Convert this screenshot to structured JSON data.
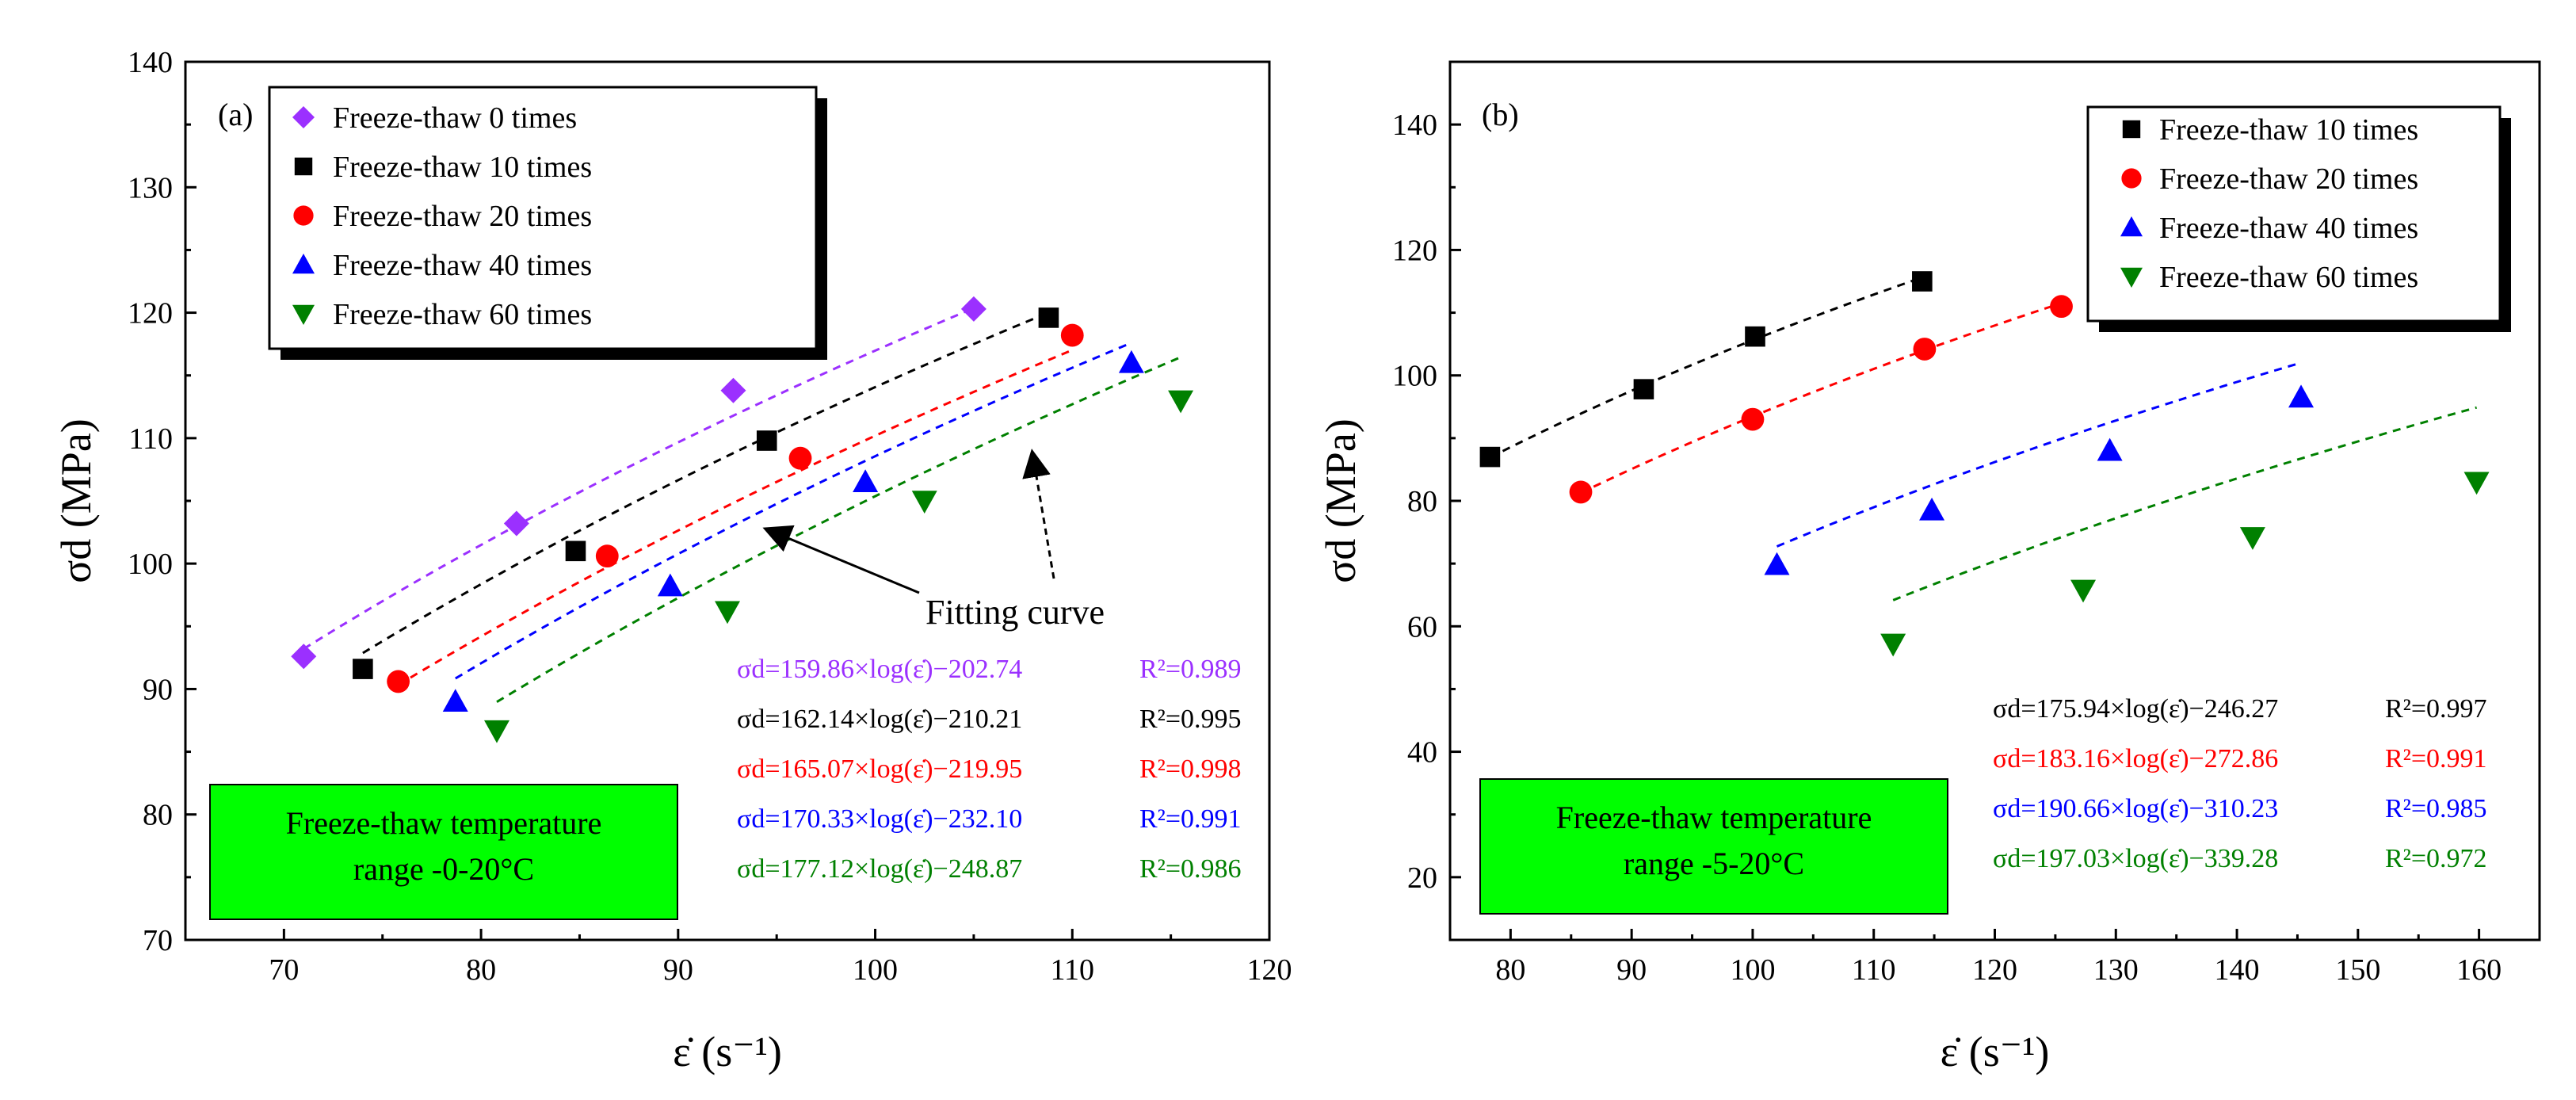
{
  "chart_data": [
    {
      "type": "scatter",
      "panel_label": "(a)",
      "xlabel": "ε̇ (s⁻¹)",
      "ylabel": "σd (MPa)",
      "xlim": [
        65,
        120
      ],
      "ylim": [
        70,
        140
      ],
      "xticks": [
        70,
        80,
        90,
        100,
        110,
        120
      ],
      "yticks": [
        70,
        80,
        90,
        100,
        110,
        120,
        130,
        140
      ],
      "legend_position": "top-left",
      "series": [
        {
          "name": "Freeze-thaw  0 times",
          "marker": "diamond",
          "color": "#9B30FF",
          "x": [
            71.0,
            81.8,
            92.8,
            105.0
          ],
          "y": [
            92.6,
            103.2,
            113.8,
            120.3
          ],
          "fit": {
            "a": 159.86,
            "b": -202.74
          },
          "equation": "σd=159.86×log(ε̇)−202.74",
          "r2": "R²=0.989"
        },
        {
          "name": "Freeze-thaw  10 times",
          "marker": "square",
          "color": "#000000",
          "x": [
            74.0,
            84.8,
            94.5,
            108.8
          ],
          "y": [
            91.6,
            101.0,
            109.8,
            119.6
          ],
          "fit": {
            "a": 162.14,
            "b": -210.21
          },
          "equation": "σd=162.14×log(ε̇)−210.21",
          "r2": "R²=0.995"
        },
        {
          "name": "Freeze-thaw  20 times",
          "marker": "circle",
          "color": "#FF0000",
          "x": [
            75.8,
            86.4,
            96.2,
            110.0
          ],
          "y": [
            90.6,
            100.6,
            108.4,
            118.2
          ],
          "fit": {
            "a": 165.07,
            "b": -219.95
          },
          "equation": "σd=165.07×log(ε̇)−219.95",
          "r2": "R²=0.998"
        },
        {
          "name": "Freeze-thaw  40 times",
          "marker": "triangle-up",
          "color": "#0000FF",
          "x": [
            78.7,
            89.6,
            99.5,
            113.0
          ],
          "y": [
            89.0,
            98.2,
            106.5,
            116.0
          ],
          "fit": {
            "a": 170.33,
            "b": -232.1
          },
          "equation": "σd=170.33×log(ε̇)−232.10",
          "r2": "R²=0.991"
        },
        {
          "name": "Freeze-thaw  60 times",
          "marker": "triangle-down",
          "color": "#008000",
          "x": [
            80.8,
            92.5,
            102.5,
            115.5
          ],
          "y": [
            86.7,
            96.2,
            105.0,
            113.0
          ],
          "fit": {
            "a": 177.12,
            "b": -248.87
          },
          "equation": "σd=177.12×log(ε̇)−248.87",
          "r2": "R²=0.986"
        }
      ],
      "annotation": "Fitting curve",
      "note": [
        "Freeze-thaw temperature",
        "range -0-20°C"
      ]
    },
    {
      "type": "scatter",
      "panel_label": "(b)",
      "xlabel": "ε̇ (s⁻¹)",
      "ylabel": "σd (MPa)",
      "xlim": [
        75,
        165
      ],
      "ylim": [
        10,
        150
      ],
      "xticks": [
        80,
        90,
        100,
        110,
        120,
        130,
        140,
        150,
        160
      ],
      "yticks": [
        20,
        40,
        60,
        80,
        100,
        120,
        140
      ],
      "legend_position": "top-right",
      "series": [
        {
          "name": "Freeze-thaw  10 times",
          "marker": "square",
          "color": "#000000",
          "x": [
            78.3,
            91.0,
            100.2,
            114.0
          ],
          "y": [
            87.0,
            97.8,
            106.2,
            115.0
          ],
          "fit": {
            "a": 175.94,
            "b": -246.27
          },
          "equation": "σd=175.94×log(ε̇)−246.27",
          "r2": "R²=0.997"
        },
        {
          "name": "Freeze-thaw  20 times",
          "marker": "circle",
          "color": "#FF0000",
          "x": [
            85.8,
            100.0,
            114.2,
            125.5
          ],
          "y": [
            81.4,
            93.0,
            104.2,
            111.0
          ],
          "fit": {
            "a": 183.16,
            "b": -272.86
          },
          "equation": "σd=183.16×log(ε̇)−272.86",
          "r2": "R²=0.991"
        },
        {
          "name": "Freeze-thaw  40 times",
          "marker": "triangle-up",
          "color": "#0000FF",
          "x": [
            102.0,
            114.8,
            129.5,
            145.3
          ],
          "y": [
            69.8,
            78.5,
            88.0,
            96.5
          ],
          "fit": {
            "a": 190.66,
            "b": -310.23
          },
          "equation": "σd=190.66×log(ε̇)−310.23",
          "r2": "R²=0.985"
        },
        {
          "name": "Freeze-thaw  60 times",
          "marker": "triangle-down",
          "color": "#008000",
          "x": [
            111.6,
            127.3,
            141.3,
            159.8
          ],
          "y": [
            57.2,
            65.8,
            74.2,
            83.0
          ],
          "fit": {
            "a": 197.03,
            "b": -339.28
          },
          "equation": "σd=197.03×log(ε̇)−339.28",
          "r2": "R²=0.972"
        }
      ],
      "note": [
        "Freeze-thaw temperature",
        "range -5-20°C"
      ]
    }
  ]
}
